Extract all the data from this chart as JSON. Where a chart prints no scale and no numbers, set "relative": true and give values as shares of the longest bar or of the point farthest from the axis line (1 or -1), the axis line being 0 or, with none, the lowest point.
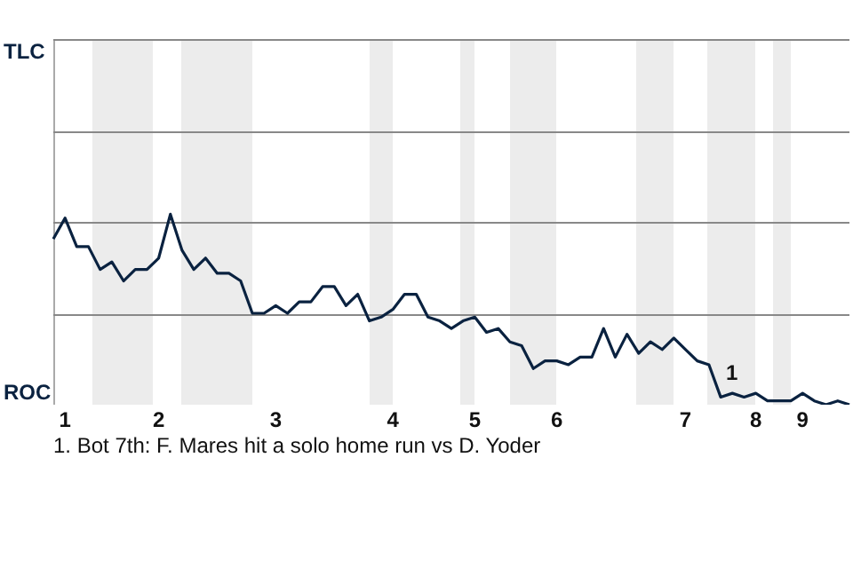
{
  "chart_data": {
    "type": "line",
    "relative": true,
    "categories": [
      null,
      "1",
      null,
      null,
      null,
      null,
      null,
      null,
      null,
      "2",
      null,
      null,
      null,
      null,
      null,
      null,
      null,
      null,
      null,
      "3",
      null,
      null,
      null,
      null,
      null,
      null,
      null,
      null,
      null,
      "4",
      null,
      null,
      null,
      null,
      null,
      null,
      "5",
      null,
      null,
      null,
      null,
      null,
      null,
      "6",
      null,
      null,
      null,
      null,
      null,
      null,
      null,
      null,
      null,
      null,
      "7",
      null,
      null,
      null,
      null,
      null,
      "8",
      null,
      null,
      null,
      "9",
      null,
      null,
      null,
      null
    ],
    "series": [
      {
        "color": "#0a2240",
        "values": [
          0.87,
          0.98,
          0.83,
          0.83,
          0.71,
          0.75,
          0.65,
          0.71,
          0.71,
          0.77,
          1,
          0.81,
          0.71,
          0.77,
          0.69,
          0.69,
          0.65,
          0.48,
          0.48,
          0.52,
          0.48,
          0.54,
          0.54,
          0.62,
          0.62,
          0.52,
          0.58,
          0.44,
          0.46,
          0.5,
          0.58,
          0.58,
          0.46,
          0.44,
          0.4,
          0.44,
          0.46,
          0.38,
          0.4,
          0.33,
          0.31,
          0.19,
          0.23,
          0.23,
          0.21,
          0.25,
          0.25,
          0.4,
          0.25,
          0.37,
          0.27,
          0.33,
          0.29,
          0.35,
          0.29,
          0.23,
          0.21,
          0.04,
          0.06,
          0.04,
          0.06,
          0.02,
          0.02,
          0.02,
          0.06,
          0.02,
          0,
          0.02,
          0
        ]
      }
    ],
    "annotations": [
      "TLC",
      "ROC",
      "1",
      "1. Bot 7th: F. Mares hit a solo home run vs D. Yoder"
    ],
    "ref_lines": [
      {
        "axis": "y",
        "value": 0.48,
        "color": "#888888"
      },
      {
        "axis": "y",
        "value": 0.96,
        "color": "#888888"
      }
    ],
    "legend": false,
    "marker": "none",
    "line_style": "solid"
  }
}
